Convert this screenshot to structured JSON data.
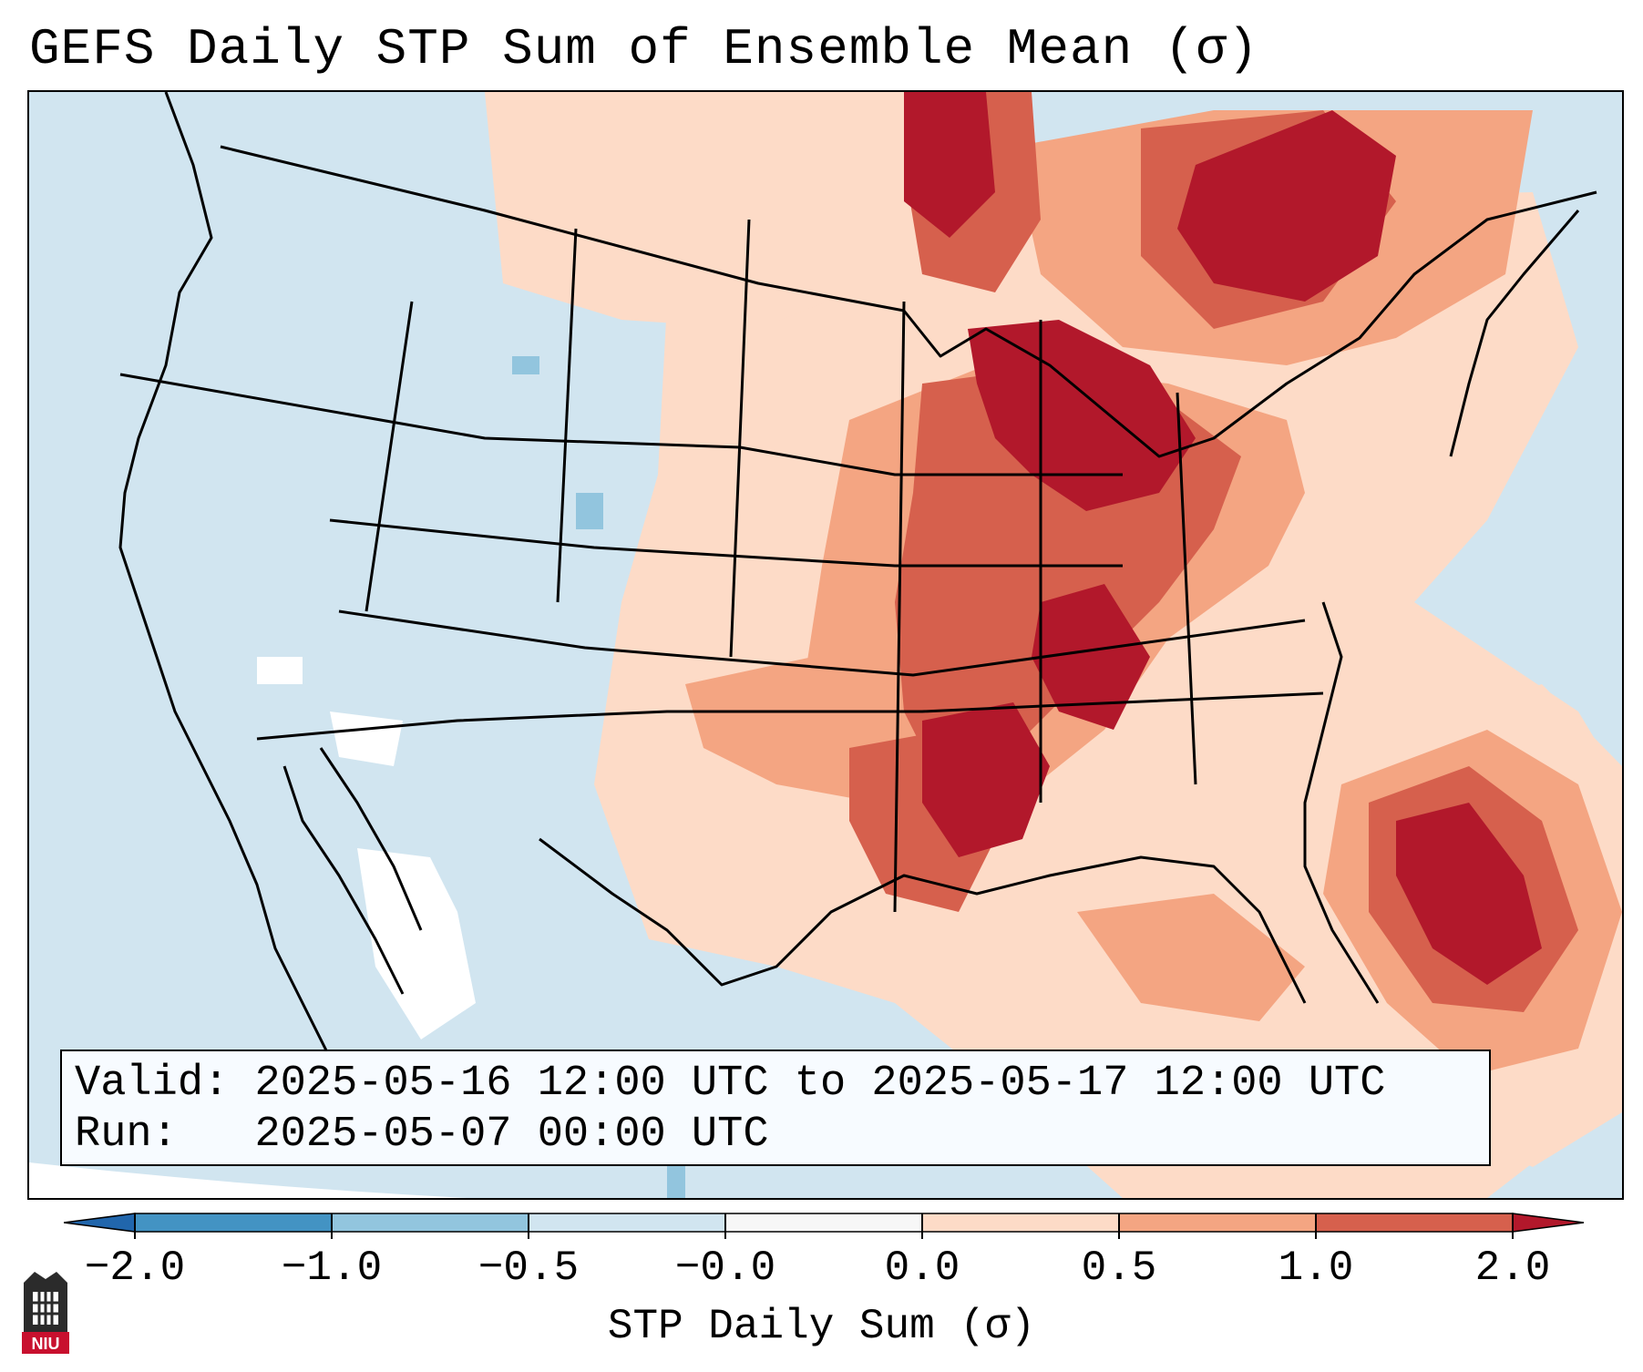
{
  "title": "GEFS Daily STP Sum of Ensemble Mean (σ)",
  "info_box": {
    "valid_label": "Valid:",
    "valid_value": "2025-05-16 12:00 UTC to 2025-05-17 12:00 UTC",
    "run_label": "Run:",
    "run_value": "2025-05-07 00:00 UTC"
  },
  "colorbar": {
    "label": "STP Daily Sum (σ)",
    "ticks": [
      "−2.0",
      "−1.0",
      "−0.5",
      "−0.0",
      "0.0",
      "0.5",
      "1.0",
      "2.0"
    ],
    "colors": {
      "below_min": "#2166ac",
      "b1": "#4393c3",
      "b2": "#92c5de",
      "b3": "#d1e5f0",
      "b4": "#f7f7f7",
      "b5": "#fddbc7",
      "b6": "#f4a582",
      "b7": "#d6604d",
      "above_max": "#b2182b"
    }
  },
  "logo_text": "NIU"
}
